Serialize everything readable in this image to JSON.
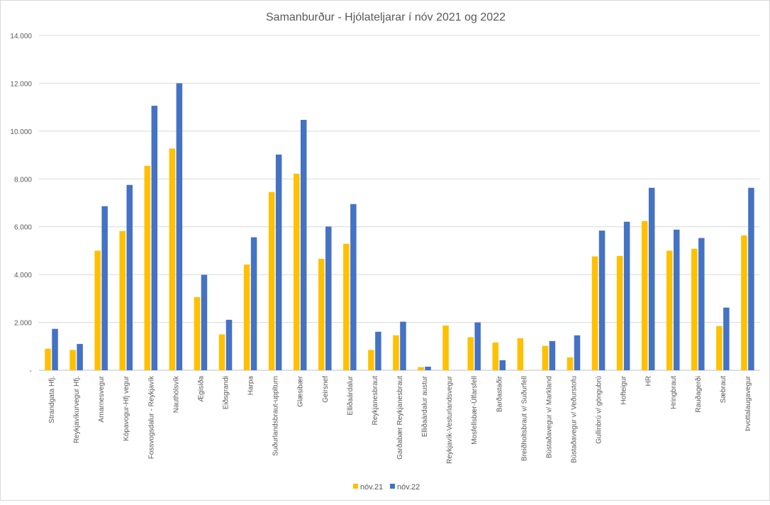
{
  "chart_data": {
    "type": "bar",
    "title": "Samanburður - Hjólateljarar í nóv 2021 og 2022",
    "xlabel": "",
    "ylabel": "",
    "ylim": [
      0,
      14000
    ],
    "yticks": [
      0,
      2000,
      4000,
      6000,
      8000,
      10000,
      12000,
      14000
    ],
    "ytick_labels": [
      "-",
      "2.000",
      "4.000",
      "6.000",
      "8.000",
      "10.000",
      "12.000",
      "14.000"
    ],
    "grid": true,
    "legend_position": "bottom",
    "categories": [
      "Strandgata Hfj.",
      "Reykjavíkurvegur Hfj.",
      "Arnarnesvegur",
      "Kópavogur-Hfj vegur",
      "Fossvogsdalur - Reykjavík",
      "Nauthólsvík",
      "Ægisíða",
      "Eiðsgrandi",
      "Harpa",
      "Suðurlandsbraut-upplturn",
      "Glæsibær",
      "Geirsnef",
      "Elliðaárdalur",
      "Reykjanesbraut",
      "Garðabær Reykjanesbraut",
      "Elliðaárdalur austur",
      "Reykjavík-Vesturlandsvegur",
      "Mosfellsbær-Úlfarsfell",
      "Barðastaðir",
      "Breiðholtsbraut v/ Suðurfell",
      "Bústaðavegur v/ Markland",
      "Bústaðavegur v/ Veðurstofu",
      "Gullinbrú v/ göngubrú",
      "Hofteigur",
      "HR",
      "Hringbraut",
      "Rauðagerði",
      "Sæbraut",
      "Þvottalaugavegur"
    ],
    "series": [
      {
        "name": "nóv.21",
        "color": "#ffc000",
        "values": [
          900,
          850,
          5000,
          5820,
          8550,
          9270,
          3060,
          1500,
          4420,
          7450,
          8220,
          4660,
          5290,
          850,
          1460,
          130,
          1870,
          1380,
          1160,
          1340,
          1020,
          540,
          4760,
          4780,
          6240,
          5000,
          5080,
          1850,
          5640
        ]
      },
      {
        "name": "nóv.22",
        "color": "#4472c4",
        "values": [
          1730,
          1100,
          6860,
          7750,
          11060,
          12000,
          3990,
          2110,
          5560,
          9020,
          10470,
          6010,
          6950,
          1610,
          2030,
          150,
          0,
          2000,
          420,
          0,
          1220,
          1460,
          5840,
          6210,
          7630,
          5880,
          5530,
          2620,
          7630
        ]
      }
    ]
  }
}
